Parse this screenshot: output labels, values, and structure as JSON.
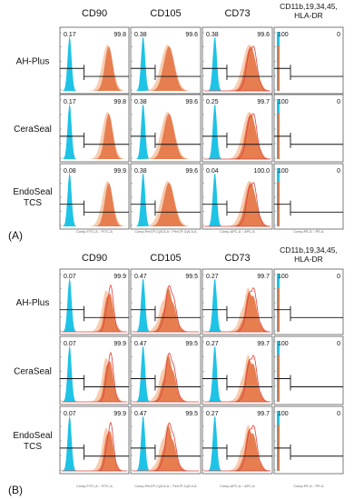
{
  "figure": {
    "colors": {
      "control": "#1ec3e6",
      "light": "#f6c8a8",
      "dark": "#e3703f",
      "red": "#e0403a",
      "gate": "#111111"
    },
    "panels": [
      {
        "label": "(A)",
        "columns": [
          "CD90",
          "CD105",
          "CD73",
          "CD11b,19,34,45,\nHLA-DR"
        ],
        "rows": [
          "AH-Plus",
          "CeraSeal",
          "EndoSeal\nTCS"
        ],
        "axis_labels": [
          "Comp-FITC-A :: FITC-A",
          "Comp-PerCP-Cy5-5-A :: PerCP-Cy5-5-A",
          "Comp-APC-A :: APC-A",
          "Comp-PE-A :: PE-A"
        ],
        "cells": [
          [
            [
              "0.17",
              "99.8"
            ],
            [
              "0.38",
              "99.6"
            ],
            [
              "0.38",
              "99.6"
            ],
            [
              "100",
              "0"
            ]
          ],
          [
            [
              "0.17",
              "99.8"
            ],
            [
              "0.38",
              "99.6"
            ],
            [
              "0.25",
              "99.7"
            ],
            [
              "100",
              "0"
            ]
          ],
          [
            [
              "0.08",
              "99.9"
            ],
            [
              "0.38",
              "99.6"
            ],
            [
              "0.04",
              "100.0"
            ],
            [
              "100",
              "0"
            ]
          ]
        ]
      },
      {
        "label": "(B)",
        "columns": [
          "CD90",
          "CD105",
          "CD73",
          "CD11b,19,34,45,\nHLA-DR"
        ],
        "rows": [
          "AH-Plus",
          "CeraSeal",
          "EndoSeal\nTCS"
        ],
        "axis_labels": [
          "Comp-FITC-A :: FITC-A",
          "Comp-PerCP-Cy5-5-A :: PerCP-Cy5-5-A",
          "Comp-APC-A :: APC-A",
          "Comp-PE-A :: PE-A"
        ],
        "cells": [
          [
            [
              "0.07",
              "99.9"
            ],
            [
              "0.47",
              "99.5"
            ],
            [
              "0.27",
              "99.7"
            ],
            [
              "100",
              "0"
            ]
          ],
          [
            [
              "0.07",
              "99.9"
            ],
            [
              "0.47",
              "99.5"
            ],
            [
              "0.27",
              "99.7"
            ],
            [
              "100",
              "0"
            ]
          ],
          [
            [
              "0.07",
              "99.9"
            ],
            [
              "0.47",
              "99.5"
            ],
            [
              "0.27",
              "99.7"
            ],
            [
              "100",
              "0"
            ]
          ]
        ]
      }
    ]
  }
}
